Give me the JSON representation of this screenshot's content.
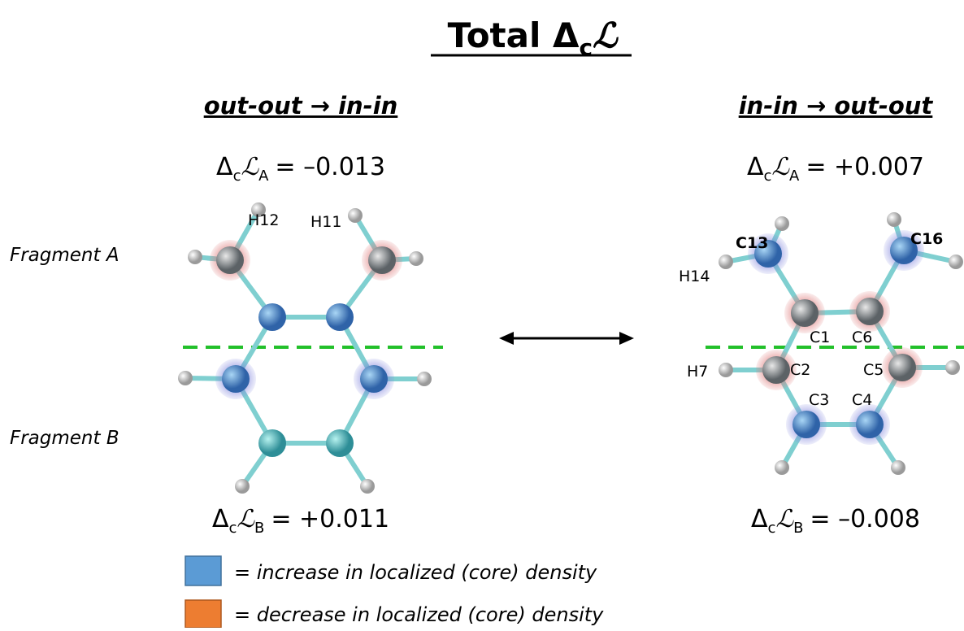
{
  "title": {
    "text": "Total Δ",
    "sub": "c",
    "script": "ℒ"
  },
  "fragments": [
    "Fragment A",
    "Fragment B"
  ],
  "panels": [
    {
      "header": "out-out → in-in",
      "top": {
        "delta": "Δ",
        "sub": "c",
        "script": "ℒ",
        "frag": "A",
        "value": "= –0.013"
      },
      "bottom": {
        "delta": "Δ",
        "sub": "c",
        "script": "ℒ",
        "frag": "B",
        "value": "= +0.011"
      },
      "atom_labels": [
        "H12",
        "H11"
      ]
    },
    {
      "header": "in-in → out-out",
      "top": {
        "delta": "Δ",
        "sub": "c",
        "script": "ℒ",
        "frag": "A",
        "value": "= +0.007"
      },
      "bottom": {
        "delta": "Δ",
        "sub": "c",
        "script": "ℒ",
        "frag": "B",
        "value": "= –0.008"
      },
      "atom_labels": [
        "C13",
        "C16",
        "H14",
        "C1",
        "C6",
        "H7",
        "C2",
        "C5",
        "C3",
        "C4"
      ]
    }
  ],
  "legend": [
    "= increase in localized (core) density",
    "= decrease in localized (core) density"
  ]
}
